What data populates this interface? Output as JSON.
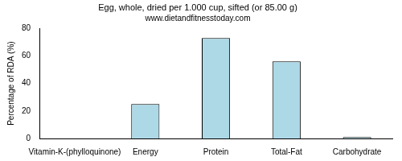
{
  "chart_data": {
    "type": "bar",
    "title": "Egg, whole, dried per 1.000 cup, sifted (or 85.00 g)",
    "subtitle": "www.dietandfitnesstoday.com",
    "y_label": "Percentage of RDA (%)",
    "categories": [
      "Vitamin-K-(phylloquinone)",
      "Energy",
      "Protein",
      "Total-Fat",
      "Carbohydrate"
    ],
    "values": [
      0,
      25,
      73,
      56,
      1
    ],
    "color": "#add8e6",
    "ylim": [
      0,
      80
    ],
    "yticks": [
      0,
      20,
      40,
      60,
      80
    ],
    "grid": false
  }
}
